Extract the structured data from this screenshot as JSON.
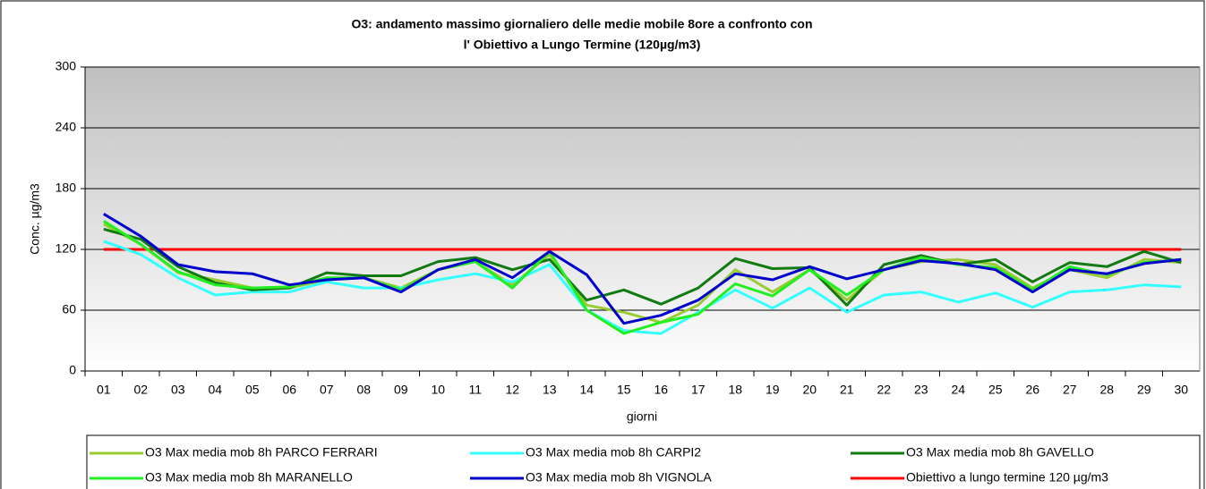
{
  "chart_data": {
    "type": "line",
    "title": "O3: andamento massimo giornaliero delle medie mobile 8ore a confronto con",
    "subtitle": "l' Obiettivo a Lungo Termine  (120µg/m3)",
    "x_label": "giorni",
    "y_label": "Conc. µg/m3",
    "categories": [
      "01",
      "02",
      "03",
      "04",
      "05",
      "06",
      "07",
      "08",
      "09",
      "10",
      "11",
      "12",
      "13",
      "14",
      "15",
      "16",
      "17",
      "18",
      "19",
      "20",
      "21",
      "22",
      "23",
      "24",
      "25",
      "26",
      "27",
      "28",
      "29",
      "30"
    ],
    "ylim": [
      0,
      300
    ],
    "yticks": [
      0,
      60,
      120,
      180,
      240,
      300
    ],
    "grid": true,
    "series": [
      {
        "name": "O3 Max media mob 8h  PARCO FERRARI",
        "color": "#99cc33",
        "values": [
          145,
          125,
          97,
          90,
          82,
          82,
          90,
          92,
          82,
          100,
          108,
          85,
          115,
          65,
          58,
          48,
          65,
          100,
          78,
          100,
          70,
          100,
          108,
          110,
          105,
          82,
          100,
          92,
          110,
          107
        ]
      },
      {
        "name": "O3 Max media mob 8h  CARPI2",
        "color": "#33ffff",
        "values": [
          128,
          115,
          92,
          75,
          78,
          78,
          88,
          82,
          82,
          90,
          96,
          88,
          105,
          60,
          40,
          37,
          58,
          80,
          62,
          82,
          58,
          75,
          78,
          68,
          77,
          63,
          78,
          80,
          85,
          83
        ]
      },
      {
        "name": "O3 Max media mob 8h  GAVELLO",
        "color": "#117a11",
        "values": [
          140,
          130,
          103,
          87,
          80,
          82,
          97,
          94,
          94,
          108,
          112,
          100,
          110,
          70,
          80,
          66,
          82,
          111,
          101,
          102,
          65,
          105,
          114,
          105,
          110,
          88,
          107,
          103,
          118,
          107
        ]
      },
      {
        "name": "O3 Max media mob 8h  MARANELLO",
        "color": "#22ee22",
        "values": [
          148,
          125,
          98,
          85,
          82,
          83,
          92,
          92,
          80,
          100,
          108,
          82,
          118,
          60,
          37,
          48,
          56,
          86,
          74,
          100,
          75,
          100,
          112,
          105,
          102,
          80,
          103,
          95,
          107,
          110
        ]
      },
      {
        "name": "O3 Max media mob 8h  VIGNOLA",
        "color": "#0000cc",
        "values": [
          155,
          133,
          105,
          98,
          96,
          85,
          90,
          92,
          78,
          100,
          110,
          92,
          118,
          95,
          47,
          55,
          70,
          96,
          90,
          103,
          91,
          100,
          109,
          106,
          100,
          78,
          100,
          96,
          106,
          110
        ]
      },
      {
        "name": "Obiettivo  a lungo termine 120 µg/m3",
        "color": "#ff0000",
        "values": [
          120,
          120,
          120,
          120,
          120,
          120,
          120,
          120,
          120,
          120,
          120,
          120,
          120,
          120,
          120,
          120,
          120,
          120,
          120,
          120,
          120,
          120,
          120,
          120,
          120,
          120,
          120,
          120,
          120,
          120
        ]
      }
    ]
  }
}
